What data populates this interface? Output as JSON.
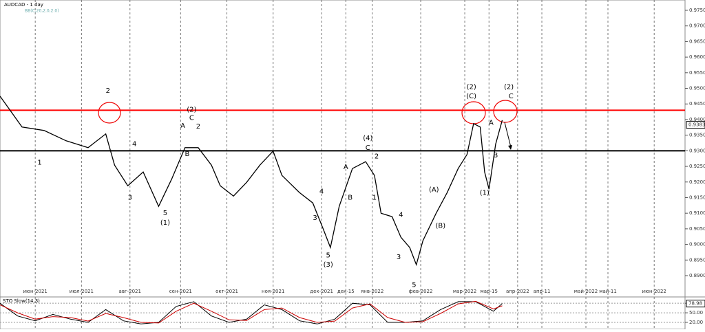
{
  "chart_data": [
    {
      "type": "line",
      "title": "AUDCAD - 1 day",
      "subtitle": "BB(C,20,2.0,2.0)",
      "x": [
        0,
        10,
        20,
        30,
        40,
        48,
        52,
        58,
        65,
        72,
        78,
        84,
        90,
        96,
        100,
        106,
        112,
        118,
        124,
        128,
        136,
        142,
        147,
        150,
        154,
        160,
        166,
        170,
        173,
        178,
        182,
        186,
        189,
        192,
        198,
        203,
        208,
        212,
        215,
        218,
        220,
        222,
        225,
        228
      ],
      "series": [
        {
          "color": "#000000",
          "values": [
            0.9475,
            0.9376,
            0.9365,
            0.9332,
            0.931,
            0.9354,
            0.9254,
            0.9188,
            0.9232,
            0.9122,
            0.921,
            0.931,
            0.931,
            0.9254,
            0.9188,
            0.9155,
            0.9199,
            0.9254,
            0.9299,
            0.9221,
            0.9166,
            0.9133,
            0.9045,
            0.899,
            0.9122,
            0.9243,
            0.9265,
            0.9221,
            0.91,
            0.9089,
            0.9023,
            0.899,
            0.8935,
            0.9012,
            0.91,
            0.9166,
            0.9243,
            0.9288,
            0.9387,
            0.9376,
            0.9232,
            0.9177,
            0.9321,
            0.9398
          ]
        }
      ],
      "xlim": [
        0,
        311
      ],
      "xticks": [
        {
          "value": 16,
          "label": "июн-2021"
        },
        {
          "value": 37,
          "label": "июл-2021"
        },
        {
          "value": 59,
          "label": "авг-2021"
        },
        {
          "value": 82,
          "label": "сен-2021"
        },
        {
          "value": 103,
          "label": "окт-2021"
        },
        {
          "value": 124,
          "label": "ноя-2021"
        },
        {
          "value": 146,
          "label": "дек-2021"
        },
        {
          "value": 157,
          "label": "дек-15"
        },
        {
          "value": 169,
          "label": "янв-2022"
        },
        {
          "value": 191,
          "label": "фев-2022"
        },
        {
          "value": 211,
          "label": "мар-2022"
        },
        {
          "value": 222,
          "label": "мар-15"
        },
        {
          "value": 235,
          "label": "апр-2022"
        },
        {
          "value": 246,
          "label": "апр-11"
        },
        {
          "value": 266,
          "label": "май-2022"
        },
        {
          "value": 276,
          "label": "май-11"
        },
        {
          "value": 297,
          "label": "июн-2022"
        }
      ],
      "ylim": [
        0.8867,
        0.9783
      ],
      "yticks": [
        {
          "value": 0.89,
          "label": "0.8900"
        },
        {
          "value": 0.895,
          "label": "0.8950"
        },
        {
          "value": 0.9,
          "label": "0.9000"
        },
        {
          "value": 0.905,
          "label": "0.9050"
        },
        {
          "value": 0.91,
          "label": "0.9100"
        },
        {
          "value": 0.915,
          "label": "0.9150"
        },
        {
          "value": 0.92,
          "label": "0.9200"
        },
        {
          "value": 0.925,
          "label": "0.9250"
        },
        {
          "value": 0.93,
          "label": "0.9300"
        },
        {
          "value": 0.935,
          "label": "0.9350"
        },
        {
          "value": 0.94,
          "label": "0.9400"
        },
        {
          "value": 0.945,
          "label": "0.9450"
        },
        {
          "value": 0.95,
          "label": "0.9500"
        },
        {
          "value": 0.955,
          "label": "0.9550"
        },
        {
          "value": 0.96,
          "label": "0.9600"
        },
        {
          "value": 0.965,
          "label": "0.9650"
        },
        {
          "value": 0.97,
          "label": "0.9700"
        },
        {
          "value": 0.975,
          "label": "0.9750"
        }
      ],
      "last_price": {
        "value": 0.9383,
        "label": "0.9383"
      },
      "hlines": [
        {
          "value": 0.943,
          "color": "#ff0000"
        },
        {
          "value": 0.93,
          "color": "#000000"
        }
      ],
      "annotations": [
        {
          "text": "1",
          "x": 18,
          "y": 0.9262
        },
        {
          "text": "2",
          "x": 49,
          "y": 0.9492
        },
        {
          "text": "4",
          "x": 61,
          "y": 0.9322
        },
        {
          "text": "3",
          "x": 59,
          "y": 0.915
        },
        {
          "text": "5",
          "x": 75,
          "y": 0.91
        },
        {
          "text": "(1)",
          "x": 75,
          "y": 0.907
        },
        {
          "text": "A",
          "x": 83,
          "y": 0.938
        },
        {
          "text": "B",
          "x": 85,
          "y": 0.929
        },
        {
          "text": "(2)",
          "x": 87,
          "y": 0.9432
        },
        {
          "text": "C",
          "x": 87,
          "y": 0.9405
        },
        {
          "text": "2",
          "x": 90,
          "y": 0.9378
        },
        {
          "text": "4",
          "x": 146,
          "y": 0.917
        },
        {
          "text": "3",
          "x": 143,
          "y": 0.9085
        },
        {
          "text": "5",
          "x": 149,
          "y": 0.8965
        },
        {
          "text": "(3)",
          "x": 149,
          "y": 0.8935
        },
        {
          "text": "A",
          "x": 157,
          "y": 0.9248
        },
        {
          "text": "B",
          "x": 159,
          "y": 0.915
        },
        {
          "text": "(4)",
          "x": 167,
          "y": 0.934
        },
        {
          "text": "C",
          "x": 167,
          "y": 0.931
        },
        {
          "text": "2",
          "x": 171,
          "y": 0.9282
        },
        {
          "text": "1",
          "x": 170,
          "y": 0.915
        },
        {
          "text": "4",
          "x": 182,
          "y": 0.9095
        },
        {
          "text": "3",
          "x": 181,
          "y": 0.896
        },
        {
          "text": "5",
          "x": 188,
          "y": 0.887
        },
        {
          "text": "(A)",
          "x": 197,
          "y": 0.9175
        },
        {
          "text": "(B)",
          "x": 200,
          "y": 0.906
        },
        {
          "text": "(2)",
          "x": 214,
          "y": 0.9505
        },
        {
          "text": "(C)",
          "x": 214,
          "y": 0.9475
        },
        {
          "text": "A",
          "x": 223,
          "y": 0.939
        },
        {
          "text": "B",
          "x": 225,
          "y": 0.9285
        },
        {
          "text": "(1)",
          "x": 220,
          "y": 0.9165
        },
        {
          "text": "(2)",
          "x": 231,
          "y": 0.9505
        },
        {
          "text": "C",
          "x": 232,
          "y": 0.9475
        }
      ]
    },
    {
      "type": "line",
      "title": "STO Slow(14,3)",
      "x": [
        0,
        8,
        16,
        24,
        32,
        40,
        48,
        56,
        64,
        72,
        80,
        88,
        96,
        104,
        112,
        120,
        128,
        136,
        144,
        152,
        160,
        168,
        176,
        184,
        192,
        200,
        208,
        216,
        224,
        228
      ],
      "series": [
        {
          "color": "#000000",
          "values": [
            80,
            40,
            25,
            45,
            30,
            20,
            60,
            25,
            15,
            20,
            70,
            85,
            40,
            20,
            30,
            75,
            60,
            25,
            15,
            30,
            80,
            75,
            20,
            20,
            25,
            60,
            85,
            85,
            55,
            79
          ]
        },
        {
          "color": "#cc0000",
          "values": [
            75,
            50,
            30,
            38,
            35,
            24,
            48,
            35,
            20,
            18,
            55,
            80,
            55,
            28,
            26,
            60,
            65,
            35,
            20,
            24,
            65,
            78,
            35,
            20,
            22,
            48,
            78,
            86,
            62,
            72
          ]
        }
      ],
      "xlim": [
        0,
        311
      ],
      "ylim": [
        7,
        89
      ],
      "yticks": [
        {
          "value": 20,
          "label": "20.00"
        },
        {
          "value": 50,
          "label": "50.00"
        },
        {
          "value": 80,
          "label": "80.00"
        }
      ],
      "last_value": {
        "value": 78.98,
        "label": "78.98"
      }
    }
  ]
}
